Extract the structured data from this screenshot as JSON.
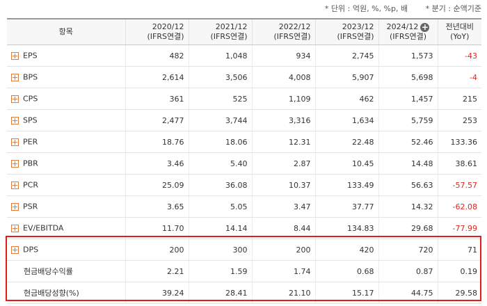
{
  "notes": {
    "unit": "* 단위 : 억원, %, %p, 배",
    "period": "* 분기 : 순액기준"
  },
  "header": {
    "item": "항목",
    "cols": [
      {
        "line1": "2020/12",
        "line2": "(IFRS연결)"
      },
      {
        "line1": "2021/12",
        "line2": "(IFRS연결)"
      },
      {
        "line1": "2022/12",
        "line2": "(IFRS연결)"
      },
      {
        "line1": "2023/12",
        "line2": "(IFRS연결)"
      },
      {
        "line1": "2024/12",
        "line2": "(IFRS연결)"
      }
    ],
    "yoy_line1": "전년대비",
    "yoy_line2": "(YoY)",
    "expand_symbol": "+"
  },
  "rows": [
    {
      "label": "EPS",
      "values": [
        "482",
        "1,048",
        "934",
        "2,745",
        "1,573"
      ],
      "yoy": "-43",
      "yoy_negative": true
    },
    {
      "label": "BPS",
      "values": [
        "2,614",
        "3,506",
        "4,008",
        "5,907",
        "5,698"
      ],
      "yoy": "-4",
      "yoy_negative": true
    },
    {
      "label": "CPS",
      "values": [
        "361",
        "525",
        "1,109",
        "462",
        "1,457"
      ],
      "yoy": "215",
      "yoy_negative": false
    },
    {
      "label": "SPS",
      "values": [
        "2,477",
        "3,744",
        "3,316",
        "1,634",
        "5,759"
      ],
      "yoy": "253",
      "yoy_negative": false
    },
    {
      "label": "PER",
      "values": [
        "18.76",
        "18.06",
        "12.31",
        "22.48",
        "52.46"
      ],
      "yoy": "133.36",
      "yoy_negative": false
    },
    {
      "label": "PBR",
      "values": [
        "3.46",
        "5.40",
        "2.87",
        "10.45",
        "14.48"
      ],
      "yoy": "38.61",
      "yoy_negative": false
    },
    {
      "label": "PCR",
      "values": [
        "25.09",
        "36.08",
        "10.37",
        "133.49",
        "56.63"
      ],
      "yoy": "-57.57",
      "yoy_negative": true
    },
    {
      "label": "PSR",
      "values": [
        "3.65",
        "5.05",
        "3.47",
        "37.77",
        "14.32"
      ],
      "yoy": "-62.08",
      "yoy_negative": true
    },
    {
      "label": "EV/EBITDA",
      "values": [
        "11.70",
        "14.14",
        "8.44",
        "134.83",
        "29.68"
      ],
      "yoy": "-77.99",
      "yoy_negative": true
    },
    {
      "label": "DPS",
      "values": [
        "200",
        "300",
        "200",
        "420",
        "720"
      ],
      "yoy": "71",
      "yoy_negative": false
    }
  ],
  "sub_rows": [
    {
      "label": "현금배당수익률",
      "values": [
        "2.21",
        "1.59",
        "1.74",
        "0.68",
        "0.87"
      ],
      "yoy": "0.19"
    },
    {
      "label": "현금배당성향(%)",
      "values": [
        "39.24",
        "28.41",
        "21.10",
        "15.17",
        "44.75"
      ],
      "yoy": "29.58"
    }
  ],
  "colors": {
    "negative": "#e0251f",
    "highlight_border": "#e51b1b",
    "expand_icon": "#e07a3a"
  }
}
